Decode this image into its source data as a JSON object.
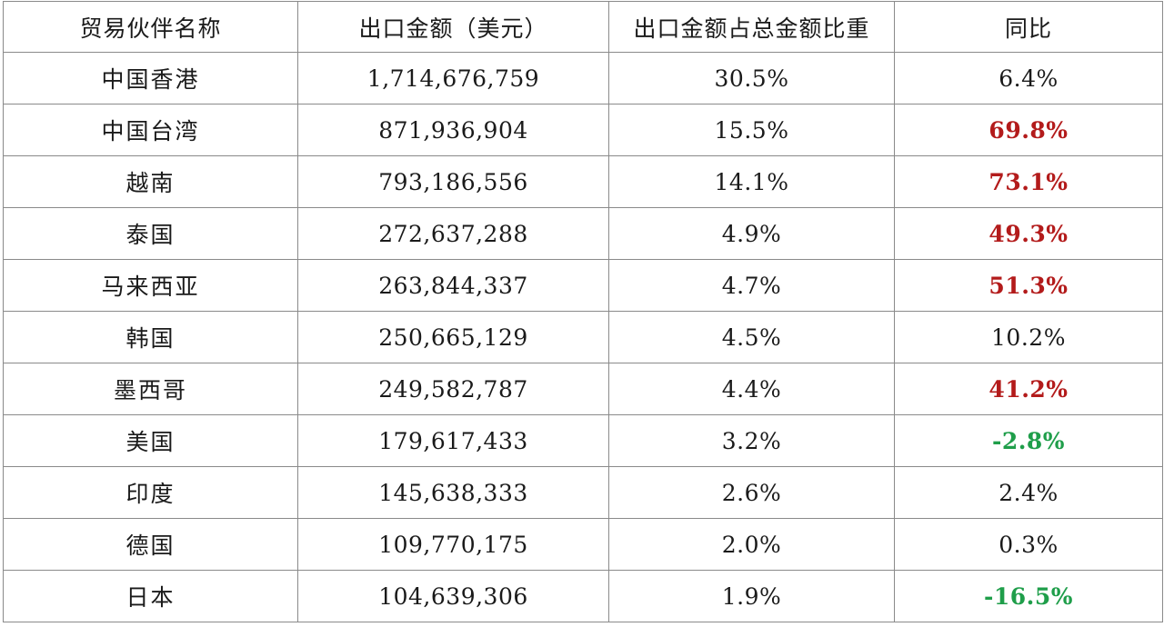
{
  "table": {
    "headers": [
      "贸易伙伴名称",
      "出口金额（美元）",
      "出口金额占总金额比重",
      "同比"
    ],
    "rows": [
      {
        "partner": "中国香港",
        "amount": "1,714,676,759",
        "share": "30.5%",
        "yoy": "6.4%",
        "trend": "neutral"
      },
      {
        "partner": "中国台湾",
        "amount": "871,936,904",
        "share": "15.5%",
        "yoy": "69.8%",
        "trend": "up"
      },
      {
        "partner": "越南",
        "amount": "793,186,556",
        "share": "14.1%",
        "yoy": "73.1%",
        "trend": "up"
      },
      {
        "partner": "泰国",
        "amount": "272,637,288",
        "share": "4.9%",
        "yoy": "49.3%",
        "trend": "up"
      },
      {
        "partner": "马来西亚",
        "amount": "263,844,337",
        "share": "4.7%",
        "yoy": "51.3%",
        "trend": "up"
      },
      {
        "partner": "韩国",
        "amount": "250,665,129",
        "share": "4.5%",
        "yoy": "10.2%",
        "trend": "neutral"
      },
      {
        "partner": "墨西哥",
        "amount": "249,582,787",
        "share": "4.4%",
        "yoy": "41.2%",
        "trend": "up"
      },
      {
        "partner": "美国",
        "amount": "179,617,433",
        "share": "3.2%",
        "yoy": "-2.8%",
        "trend": "down"
      },
      {
        "partner": "印度",
        "amount": "145,638,333",
        "share": "2.6%",
        "yoy": "2.4%",
        "trend": "neutral"
      },
      {
        "partner": "德国",
        "amount": "109,770,175",
        "share": "2.0%",
        "yoy": "0.3%",
        "trend": "neutral"
      },
      {
        "partner": "日本",
        "amount": "104,639,306",
        "share": "1.9%",
        "yoy": "-16.5%",
        "trend": "down"
      }
    ]
  },
  "colors": {
    "increase_highlight": "#b31b1b",
    "decrease_highlight": "#1f9e4a",
    "border": "#8a8a8a",
    "text": "#1a1a1a"
  }
}
